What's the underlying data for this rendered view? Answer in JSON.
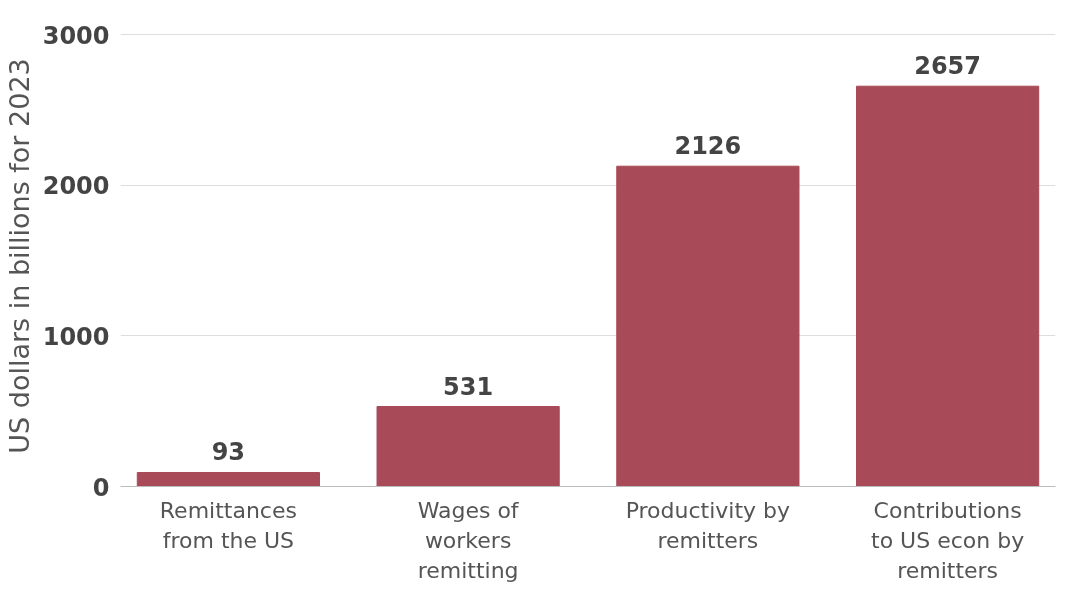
{
  "chart_data": {
    "type": "bar",
    "ylabel": "US dollars in billions for 2023",
    "categories": [
      "Remittances from the US",
      "Wages of workers remitting",
      "Productivity by remitters",
      "Contributions to US econ by remitters"
    ],
    "values": [
      93,
      531,
      2126,
      2657
    ],
    "color": "#a84a57",
    "ylim": [
      0,
      3000
    ],
    "yticks": [
      0,
      1000,
      2000,
      3000
    ],
    "grid": "y",
    "data_labels": true
  }
}
